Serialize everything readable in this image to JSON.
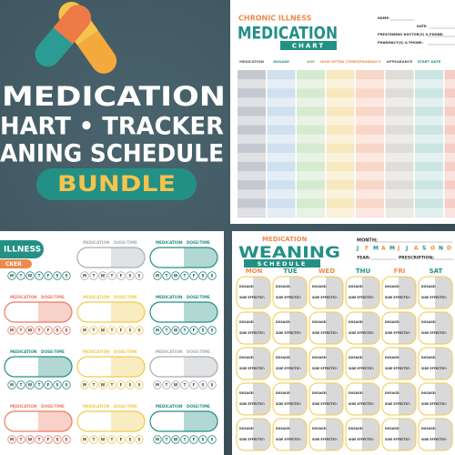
{
  "banner": {
    "lines": [
      "MEDICATION",
      "HART • TRACKER",
      "ANING SCHEDULE"
    ],
    "badge": "BUNDLE"
  },
  "med_chart": {
    "kicker": "CHRONIC ILLNESS",
    "title": "MEDICATION",
    "subtitle": "CHART",
    "fields": [
      "NAME:",
      "DATE:",
      "PRESCRIBING DOCTOR(S) & PHONE:",
      "PHARMACY(S) & PHONE:"
    ],
    "columns": [
      "MEDICATION",
      "DOSAGE",
      "USE",
      "HOW OFTEN (TIMES)",
      "PHARMACY",
      "APPEARANCE",
      "START DATE"
    ]
  },
  "tracker": {
    "title": "ILLNESS",
    "title2": "CKER",
    "medication": "MEDICATION",
    "dose": "DOSE/TIME",
    "days": [
      "M",
      "T",
      "W",
      "T",
      "F",
      "S",
      "S"
    ]
  },
  "weaning": {
    "kicker": "MEDICATION",
    "title": "WEANING",
    "subtitle": "SCHEDULE",
    "month": "MONTH:",
    "months": [
      "J",
      "F",
      "M",
      "A",
      "M",
      "J",
      "J",
      "A",
      "S",
      "O",
      "N",
      "D"
    ],
    "year": "YEAR:",
    "prescription": "PRESCRIPTION:",
    "days": [
      "MON",
      "TUE",
      "WED",
      "THU",
      "FRI",
      "SAT"
    ],
    "dosage": "DOSAGE:",
    "side": "SIDE EFFECTS?:"
  }
}
